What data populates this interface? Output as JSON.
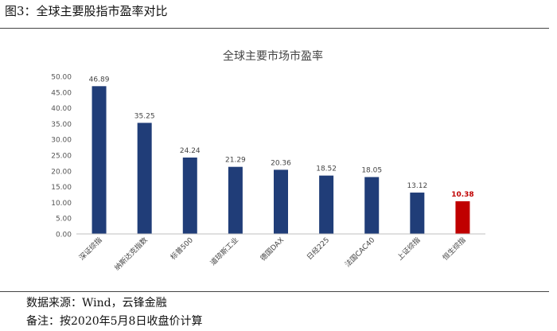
{
  "figure": {
    "title": "图3：全球主要股指市盈率对比",
    "source": "数据来源：Wind，云锋金融",
    "remark": "备注：按2020年5月8日收盘价计算"
  },
  "colors": {
    "bar": "#203d78",
    "highlight_bar": "#c00000",
    "highlight_label": "#c00000"
  },
  "chart_data": {
    "type": "bar",
    "title": "全球主要市场市盈率",
    "categories": [
      "深证综指",
      "纳斯达克指数",
      "标普500",
      "道琼斯工业",
      "德国DAX",
      "日经225",
      "法国CAC40",
      "上证综指",
      "恒生综指"
    ],
    "values": [
      46.89,
      35.25,
      24.24,
      21.29,
      20.36,
      18.52,
      18.05,
      13.12,
      10.38
    ],
    "value_labels": [
      "46.89",
      "35.25",
      "24.24",
      "21.29",
      "20.36",
      "18.52",
      "18.05",
      "13.12",
      "10.38"
    ],
    "highlight_index": 8,
    "ylim": [
      0,
      50
    ],
    "yticks": [
      "0.00",
      "5.00",
      "10.00",
      "15.00",
      "20.00",
      "25.00",
      "30.00",
      "35.00",
      "40.00",
      "45.00",
      "50.00"
    ],
    "grid": false,
    "legend": "none"
  }
}
